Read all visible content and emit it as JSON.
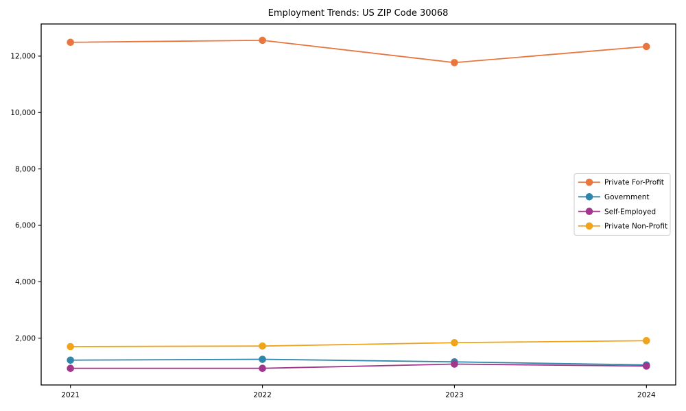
{
  "chart_data": {
    "type": "line",
    "title": "Employment Trends: US ZIP Code 30068",
    "xlabel": "",
    "ylabel": "",
    "categories": [
      "2021",
      "2022",
      "2023",
      "2024"
    ],
    "series": [
      {
        "name": "Private For-Profit",
        "color": "#E8763F",
        "values": [
          12490,
          12560,
          11770,
          12340
        ]
      },
      {
        "name": "Government",
        "color": "#2E86AB",
        "values": [
          1220,
          1250,
          1160,
          1050
        ]
      },
      {
        "name": "Self-Employed",
        "color": "#A0378A",
        "values": [
          930,
          930,
          1080,
          1010
        ]
      },
      {
        "name": "Private Non-Profit",
        "color": "#F0A41C",
        "values": [
          1700,
          1720,
          1840,
          1910
        ]
      }
    ],
    "ylim": [
      340,
      13140
    ],
    "yticks": {
      "values": [
        2000,
        4000,
        6000,
        8000,
        10000,
        12000
      ],
      "labels": [
        "2,000",
        "4,000",
        "6,000",
        "8,000",
        "10,000",
        "12,000"
      ]
    },
    "xticks": [
      "2021",
      "2022",
      "2023",
      "2024"
    ],
    "grid": false,
    "legend": {
      "position": "right",
      "entries": [
        "Private For-Profit",
        "Government",
        "Self-Employed",
        "Private Non-Profit"
      ]
    },
    "colors": {
      "axis": "#000000",
      "legend_border": "#cccccc",
      "background": "#ffffff"
    }
  }
}
